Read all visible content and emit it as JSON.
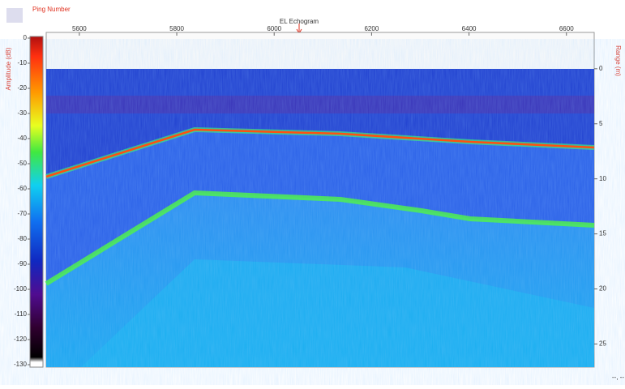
{
  "chart_data": {
    "type": "echogram",
    "title": "EL Echogram",
    "xlabel": "Ping Number",
    "ylabel": "Range (m)",
    "colorbar_label": "Amplitude (dB)",
    "xlim": [
      5532,
      6657
    ],
    "xticks": [
      5600,
      5800,
      6000,
      6200,
      6400,
      6600
    ],
    "ylim": [
      -3.3,
      27.1
    ],
    "yticks": [
      0,
      5,
      10,
      15,
      20,
      25
    ],
    "colorbar_lim": [
      0,
      -130
    ],
    "colorbar_ticks": [
      0,
      -10,
      -20,
      -30,
      -40,
      -50,
      -60,
      -70,
      -80,
      -90,
      -100,
      -110,
      -120,
      -130
    ],
    "status": "--, --"
  }
}
